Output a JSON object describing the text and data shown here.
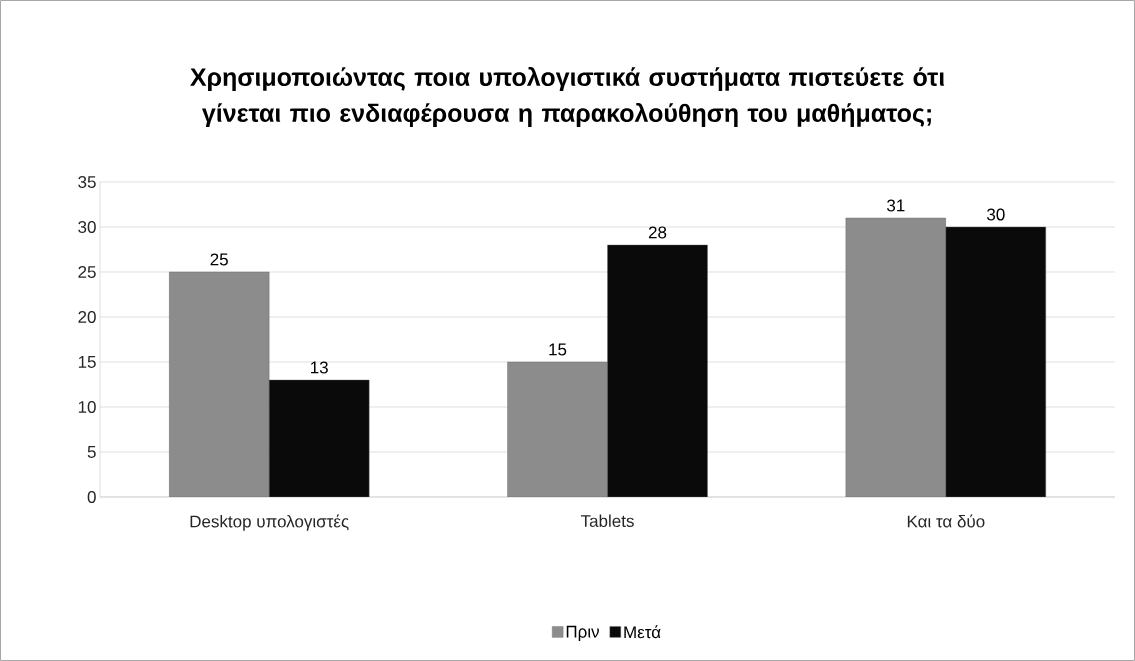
{
  "chart_data": {
    "type": "bar",
    "title": "Χρησιμοποιώντας ποια υπολογιστικά συστήματα πιστεύετε ότι γίνεται πιο ενδιαφέρουσα η παρακολούθηση του μαθήματος;",
    "categories": [
      "Desktop υπολογιστές",
      "Tablets",
      "Και τα δύο"
    ],
    "series": [
      {
        "name": "Πριν",
        "color": "#8c8c8c",
        "values": [
          25,
          15,
          31
        ]
      },
      {
        "name": "Μετά",
        "color": "#0a0a0a",
        "values": [
          13,
          28,
          30
        ]
      }
    ],
    "ylim": [
      0,
      35
    ],
    "yticks": [
      0,
      5,
      10,
      15,
      20,
      25,
      30,
      35
    ],
    "grid": "y",
    "legend": "bottom",
    "data_labels": true
  }
}
